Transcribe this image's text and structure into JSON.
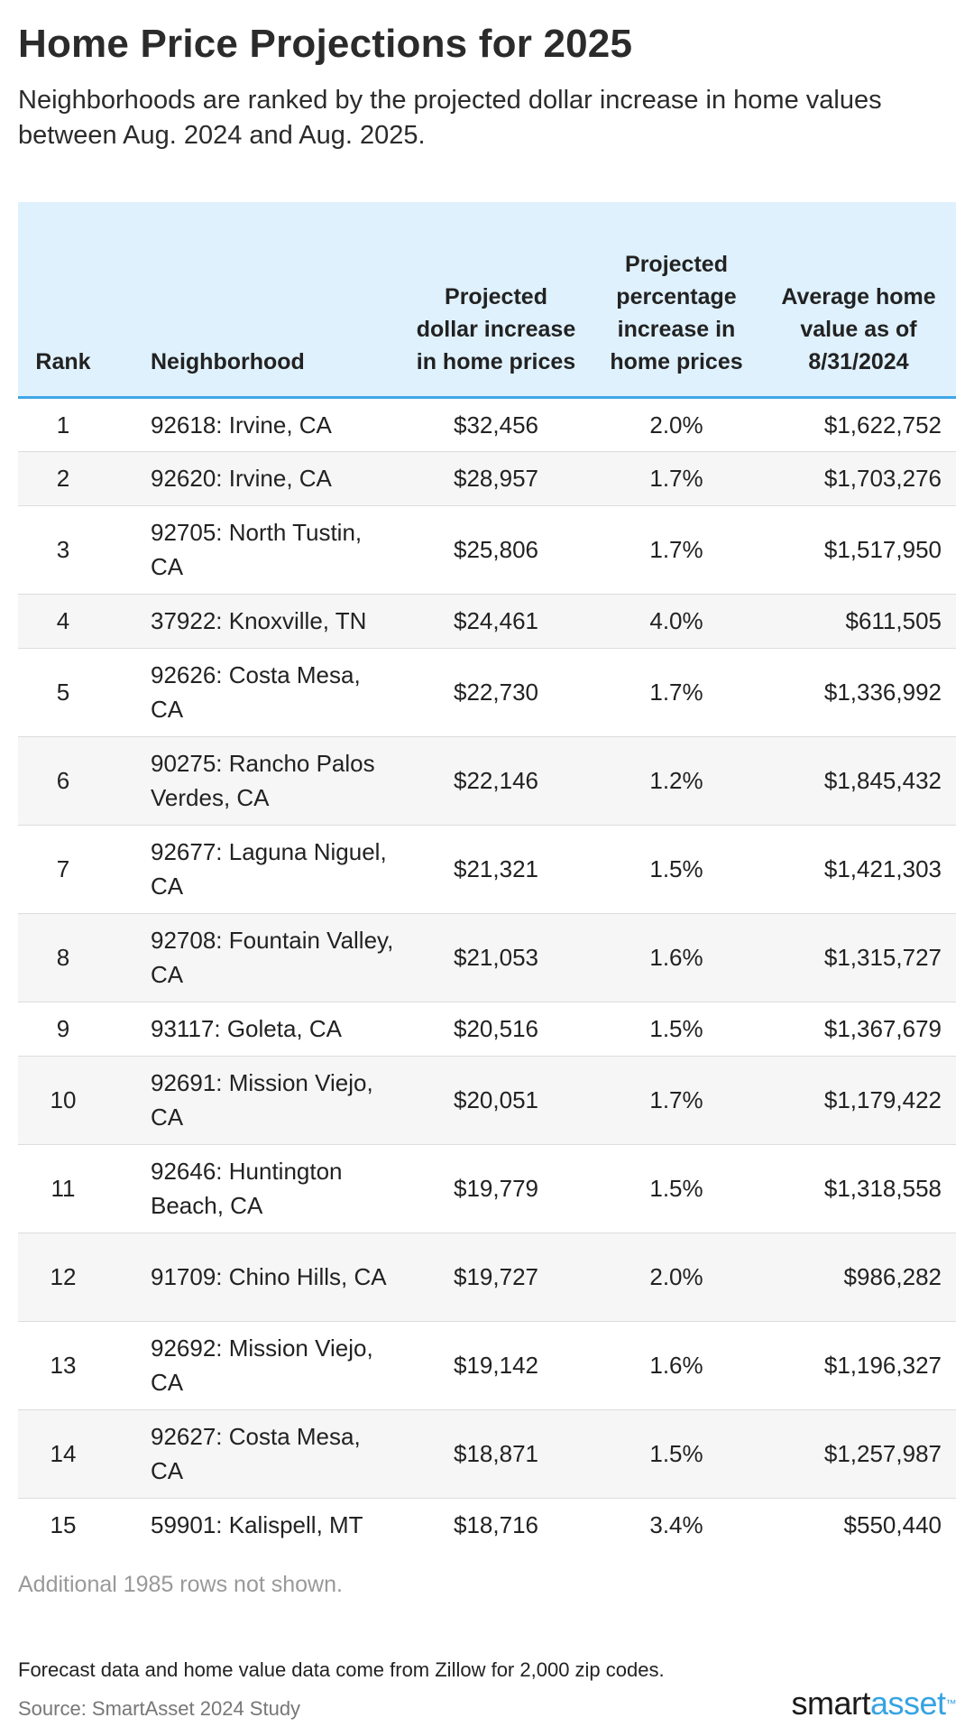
{
  "header": {
    "title": "Home Price Projections for 2025",
    "subtitle": "Neighborhoods are ranked by the projected dollar increase in home values between Aug. 2024 and Aug. 2025."
  },
  "table": {
    "columns": [
      "Rank",
      "Neighborhood",
      "Projected dollar increase in home prices",
      "Projected percentage increase in home prices",
      "Average home value as of 8/31/2024"
    ],
    "rows": [
      {
        "rank": "1",
        "neighborhood": "92618: Irvine, CA",
        "dollar": "$32,456",
        "pct": "2.0%",
        "avg": "$1,622,752"
      },
      {
        "rank": "2",
        "neighborhood": "92620: Irvine, CA",
        "dollar": "$28,957",
        "pct": "1.7%",
        "avg": "$1,703,276"
      },
      {
        "rank": "3",
        "neighborhood": "92705: North Tustin, CA",
        "dollar": "$25,806",
        "pct": "1.7%",
        "avg": "$1,517,950"
      },
      {
        "rank": "4",
        "neighborhood": "37922: Knoxville, TN",
        "dollar": "$24,461",
        "pct": "4.0%",
        "avg": "$611,505"
      },
      {
        "rank": "5",
        "neighborhood": "92626: Costa Mesa, CA",
        "dollar": "$22,730",
        "pct": "1.7%",
        "avg": "$1,336,992"
      },
      {
        "rank": "6",
        "neighborhood": "90275: Rancho Palos Verdes, CA",
        "dollar": "$22,146",
        "pct": "1.2%",
        "avg": "$1,845,432"
      },
      {
        "rank": "7",
        "neighborhood": "92677: Laguna Niguel, CA",
        "dollar": "$21,321",
        "pct": "1.5%",
        "avg": "$1,421,303"
      },
      {
        "rank": "8",
        "neighborhood": "92708: Fountain Valley, CA",
        "dollar": "$21,053",
        "pct": "1.6%",
        "avg": "$1,315,727"
      },
      {
        "rank": "9",
        "neighborhood": "93117: Goleta, CA",
        "dollar": "$20,516",
        "pct": "1.5%",
        "avg": "$1,367,679"
      },
      {
        "rank": "10",
        "neighborhood": "92691: Mission Viejo, CA",
        "dollar": "$20,051",
        "pct": "1.7%",
        "avg": "$1,179,422"
      },
      {
        "rank": "11",
        "neighborhood": "92646: Huntington Beach, CA",
        "dollar": "$19,779",
        "pct": "1.5%",
        "avg": "$1,318,558"
      },
      {
        "rank": "12",
        "neighborhood": "91709: Chino Hills, CA",
        "dollar": "$19,727",
        "pct": "2.0%",
        "avg": "$986,282"
      },
      {
        "rank": "13",
        "neighborhood": "92692: Mission Viejo, CA",
        "dollar": "$19,142",
        "pct": "1.6%",
        "avg": "$1,196,327"
      },
      {
        "rank": "14",
        "neighborhood": "92627: Costa Mesa, CA",
        "dollar": "$18,871",
        "pct": "1.5%",
        "avg": "$1,257,987"
      },
      {
        "rank": "15",
        "neighborhood": "59901: Kalispell, MT",
        "dollar": "$18,716",
        "pct": "3.4%",
        "avg": "$550,440"
      }
    ]
  },
  "note": "Additional 1985 rows not shown.",
  "footer": {
    "footnote": "Forecast data and home value data come from Zillow for 2,000 zip codes.",
    "source": "Source: SmartAsset 2024 Study",
    "logo_smart": "smart",
    "logo_asset": "asset",
    "logo_tm": "™"
  },
  "colors": {
    "header_bg": "#dff1fd",
    "header_rule": "#41a6e6",
    "brand_blue": "#36a3e2",
    "stripe": "#f6f6f6"
  }
}
